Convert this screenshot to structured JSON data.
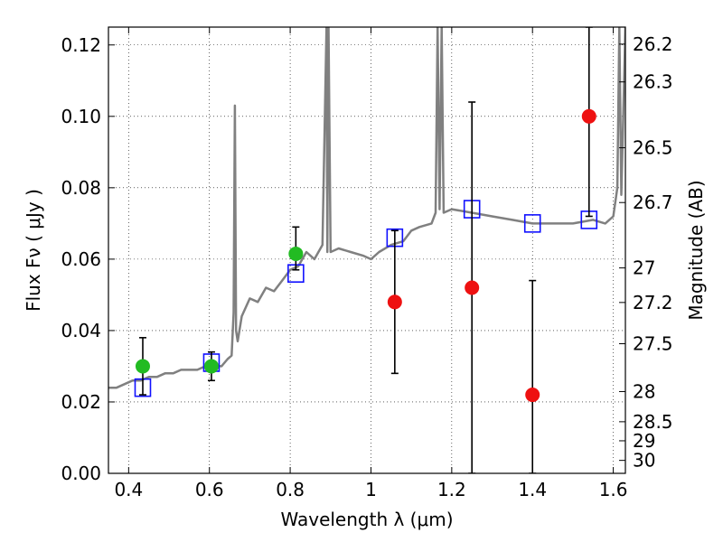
{
  "chart_data": {
    "type": "scatter",
    "title": "",
    "xlabel": "Wavelength  λ (μm)",
    "ylabel": "Flux  Fν  ( μJy )",
    "y2label": "Magnitude (AB)",
    "xlim": [
      0.35,
      1.63
    ],
    "ylim": [
      0.0,
      0.125
    ],
    "grid": true,
    "x_ticks": [
      0.4,
      0.6,
      0.8,
      1.0,
      1.2,
      1.4,
      1.6
    ],
    "x_tick_labels": [
      "0.4",
      "0.6",
      "0.8",
      "1",
      "1.2",
      "1.4",
      "1.6"
    ],
    "y_ticks": [
      0.0,
      0.02,
      0.04,
      0.06,
      0.08,
      0.1,
      0.12
    ],
    "y_tick_labels": [
      "0.00",
      "0.02",
      "0.04",
      "0.06",
      "0.08",
      "0.10",
      "0.12"
    ],
    "mag_ticks": [
      26.2,
      26.3,
      26.5,
      26.7,
      27,
      27.2,
      27.5,
      28,
      28.5,
      29,
      30
    ],
    "mag_tick_labels": [
      "26.2",
      "26.3",
      "26.5",
      "26.7",
      "27",
      "27.2",
      "27.5",
      "28",
      "28.5",
      "29",
      "30"
    ],
    "series": [
      {
        "kind": "spectrum",
        "color": "#808080",
        "x": [
          0.35,
          0.37,
          0.39,
          0.41,
          0.43,
          0.45,
          0.47,
          0.49,
          0.51,
          0.53,
          0.55,
          0.57,
          0.59,
          0.61,
          0.63,
          0.645,
          0.655,
          0.66,
          0.663,
          0.666,
          0.67,
          0.68,
          0.7,
          0.72,
          0.74,
          0.76,
          0.78,
          0.8,
          0.82,
          0.84,
          0.86,
          0.88,
          0.89,
          0.892,
          0.895,
          0.9,
          0.92,
          0.95,
          0.98,
          1.0,
          1.02,
          1.05,
          1.08,
          1.1,
          1.12,
          1.15,
          1.16,
          1.165,
          1.17,
          1.175,
          1.18,
          1.2,
          1.25,
          1.3,
          1.35,
          1.4,
          1.45,
          1.5,
          1.55,
          1.58,
          1.6,
          1.61,
          1.615,
          1.62,
          1.63
        ],
        "y": [
          0.024,
          0.024,
          0.025,
          0.026,
          0.026,
          0.027,
          0.027,
          0.028,
          0.028,
          0.029,
          0.029,
          0.029,
          0.03,
          0.03,
          0.03,
          0.032,
          0.033,
          0.045,
          0.103,
          0.04,
          0.037,
          0.044,
          0.049,
          0.048,
          0.052,
          0.051,
          0.054,
          0.057,
          0.058,
          0.062,
          0.06,
          0.064,
          0.125,
          0.062,
          0.125,
          0.062,
          0.063,
          0.062,
          0.061,
          0.06,
          0.062,
          0.064,
          0.065,
          0.068,
          0.069,
          0.07,
          0.073,
          0.125,
          0.074,
          0.125,
          0.073,
          0.074,
          0.073,
          0.072,
          0.071,
          0.07,
          0.07,
          0.07,
          0.071,
          0.07,
          0.072,
          0.08,
          0.125,
          0.078,
          0.125
        ]
      },
      {
        "kind": "model-photometry",
        "marker": "open-square",
        "color": "#1010ff",
        "x": [
          0.435,
          0.605,
          0.814,
          1.059,
          1.25,
          1.4,
          1.54
        ],
        "y": [
          0.024,
          0.031,
          0.056,
          0.066,
          0.074,
          0.07,
          0.071
        ]
      },
      {
        "kind": "optical-photometry",
        "marker": "filled-circle",
        "color": "#22bb22",
        "x": [
          0.435,
          0.605,
          0.814
        ],
        "y": [
          0.03,
          0.03,
          0.0615
        ],
        "err_low": [
          0.022,
          0.026,
          0.057
        ],
        "err_high": [
          0.038,
          0.034,
          0.069
        ]
      },
      {
        "kind": "nir-photometry",
        "marker": "filled-circle",
        "color": "#ee1111",
        "x": [
          1.059,
          1.25,
          1.4,
          1.54
        ],
        "y": [
          0.048,
          0.052,
          0.022,
          0.1
        ],
        "err_low": [
          0.028,
          0.0,
          0.0,
          0.072
        ],
        "err_high": [
          0.068,
          0.104,
          0.054,
          0.125
        ]
      }
    ]
  }
}
